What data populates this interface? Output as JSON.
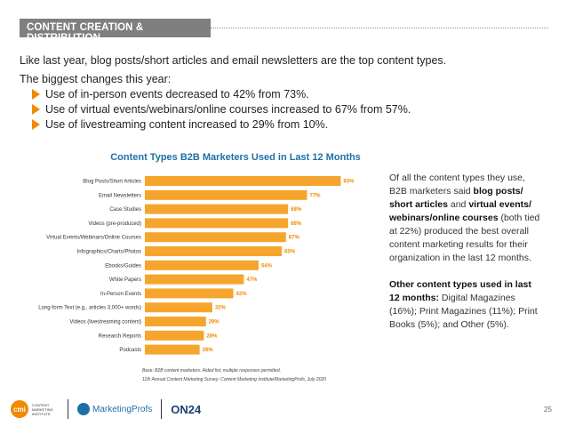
{
  "section": {
    "tag": "CONTENT CREATION & DISTRIBUTION"
  },
  "intro": "Like last year, blog posts/short articles and email newsletters are the top content types.",
  "changes": {
    "heading": "The biggest changes this year:",
    "items": [
      "Use of in-person events decreased to 42% from 73%.",
      "Use of virtual events/webinars/online courses increased to 67% from 57%.",
      "Use of livestreaming content increased to 29% from 10%."
    ]
  },
  "chart_data": {
    "type": "bar",
    "orientation": "horizontal",
    "title": "Content Types B2B Marketers Used in Last 12 Months",
    "categories": [
      "Blog Posts/Short Articles",
      "Email Newsletters",
      "Case Studies",
      "Videos (pre-produced)",
      "Virtual Events/Webinars/Online Courses",
      "Infographics/Charts/Photos",
      "Ebooks/Guides",
      "White Papers",
      "In-Person Events",
      "Long-form Text (e.g., articles 3,000+ words)",
      "Videos (livestreaming content)",
      "Research Reports",
      "Podcasts"
    ],
    "values": [
      93,
      77,
      68,
      68,
      67,
      65,
      54,
      47,
      42,
      32,
      29,
      28,
      26
    ],
    "data_labels": [
      "93%",
      "77%",
      "68%",
      "68%",
      "67%",
      "65%",
      "54%",
      "47%",
      "42%",
      "32%",
      "29%",
      "28%",
      "26%"
    ],
    "xlim": [
      0,
      100
    ],
    "xticks": [
      "0",
      "20",
      "40",
      "60",
      "80",
      "100"
    ],
    "grid": false,
    "bar_color": "#f5a52c",
    "label_color": "#f08a00"
  },
  "footnotes": {
    "base": "Base: B2B content marketers. Aided list; multiple responses permitted.",
    "source": "11th Annual Content Marketing Survey: Content Marketing Institute/MarketingProfs, July 2020"
  },
  "sidebar": {
    "p1_pre": "Of all the content types they use, B2B marketers said ",
    "p1_bold1": "blog posts/ short articles",
    "p1_mid": " and ",
    "p1_bold2": "virtual events/ webinars/online courses",
    "p1_post": " (both tied at 22%) produced the best overall content marketing results for their organization in the last 12 months.",
    "p2_bold": "Other content types used in last 12 months:",
    "p2_rest": " Digital Magazines (16%); Print Magazines (11%); Print Books (5%); and Other (5%)."
  },
  "footer": {
    "cmi_mark": "cmi",
    "cmi_text": "CONTENT MARKETING INSTITUTE",
    "marketingprofs": "MarketingProfs",
    "on24": "ON24",
    "page_number": "25"
  },
  "colors": {
    "accent": "#f08a00",
    "title_blue": "#1e6fa8",
    "tag_gray": "#7f7f7f"
  }
}
